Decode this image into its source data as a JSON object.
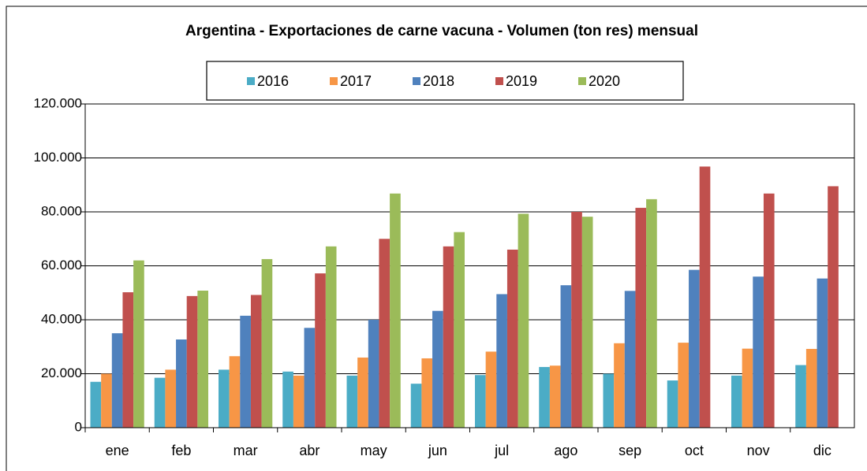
{
  "chart_data": {
    "type": "bar",
    "title": "Argentina - Exportaciones de carne vacuna - Volumen (ton res) mensual",
    "categories": [
      "ene",
      "feb",
      "mar",
      "abr",
      "may",
      "jun",
      "jul",
      "ago",
      "sep",
      "oct",
      "nov",
      "dic"
    ],
    "series": [
      {
        "name": "2016",
        "color": "#4bacc6",
        "values": [
          17000,
          18500,
          21500,
          20800,
          19300,
          16300,
          19500,
          22500,
          20000,
          17500,
          19300,
          23200
        ]
      },
      {
        "name": "2017",
        "color": "#f79646",
        "values": [
          20000,
          21500,
          26500,
          19300,
          26000,
          25700,
          28200,
          23000,
          31300,
          31500,
          29300,
          29200
        ]
      },
      {
        "name": "2018",
        "color": "#4f81bd",
        "values": [
          35000,
          32700,
          41500,
          37000,
          40000,
          43300,
          49500,
          52800,
          50700,
          58500,
          56000,
          55300
        ]
      },
      {
        "name": "2019",
        "color": "#c0504d",
        "values": [
          50200,
          48800,
          49200,
          57200,
          70000,
          67200,
          66000,
          80000,
          81500,
          96800,
          86800,
          89500
        ]
      },
      {
        "name": "2020",
        "color": "#9bbb59",
        "values": [
          62000,
          50800,
          62500,
          67200,
          86800,
          72500,
          79300,
          78200,
          84700,
          null,
          null,
          null
        ]
      }
    ],
    "ylim": [
      0,
      120000
    ],
    "yticks": [
      0,
      {
        "value": 20000,
        "label": "20.000"
      },
      {
        "value": 40000,
        "label": "40.000"
      },
      {
        "value": 60000,
        "label": "60.000"
      },
      {
        "value": 80000,
        "label": "80.000"
      },
      {
        "value": 100000,
        "label": "100.000"
      },
      {
        "value": 120000,
        "label": "120.000"
      }
    ],
    "grid": true,
    "legend": "top"
  }
}
